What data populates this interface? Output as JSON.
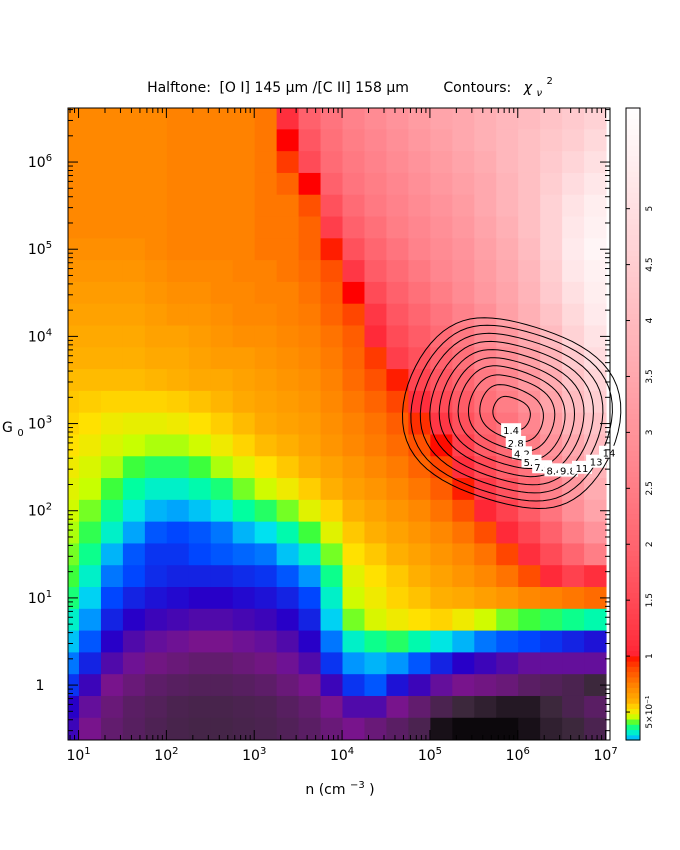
{
  "chart_data": {
    "type": "heatmap",
    "title": {
      "halftone_prefix": "Halftone:",
      "halftone_ratio": "[O I] 145 μm /[C II] 158 μm",
      "contours_prefix": "Contours:",
      "contours_symbol": "χ",
      "contours_sub": "ν",
      "contours_sup": "2"
    },
    "xlabel": {
      "text": "n (cm",
      "sup": "−3",
      "close": ")"
    },
    "ylabel": {
      "text": "G",
      "sub": "0"
    },
    "x_log_range": [
      0.88,
      7.05
    ],
    "y_log_range": [
      -0.63,
      6.62
    ],
    "x_ticks": [
      {
        "log": 1,
        "base": "10",
        "exp": "1"
      },
      {
        "log": 2,
        "base": "10",
        "exp": "2"
      },
      {
        "log": 3,
        "base": "10",
        "exp": "3"
      },
      {
        "log": 4,
        "base": "10",
        "exp": "4"
      },
      {
        "log": 5,
        "base": "10",
        "exp": "5"
      },
      {
        "log": 6,
        "base": "10",
        "exp": "6"
      },
      {
        "log": 7,
        "base": "10",
        "exp": "7"
      }
    ],
    "y_ticks": [
      {
        "log": 0,
        "base": "1",
        "exp": ""
      },
      {
        "log": 1,
        "base": "10",
        "exp": "1"
      },
      {
        "log": 2,
        "base": "10",
        "exp": "2"
      },
      {
        "log": 3,
        "base": "10",
        "exp": "3"
      },
      {
        "log": 4,
        "base": "10",
        "exp": "4"
      },
      {
        "log": 5,
        "base": "10",
        "exp": "5"
      },
      {
        "log": 6,
        "base": "10",
        "exp": "6"
      }
    ],
    "colorbar": {
      "range": [
        0.25,
        5.9
      ],
      "labels": [
        {
          "value": 5,
          "text": "5"
        },
        {
          "value": 4.5,
          "text": "4.5"
        },
        {
          "value": 4,
          "text": "4"
        },
        {
          "value": 3.5,
          "text": "3.5"
        },
        {
          "value": 3,
          "text": "3"
        },
        {
          "value": 2.5,
          "text": "2.5"
        },
        {
          "value": 2,
          "text": "2"
        },
        {
          "value": 1.5,
          "text": "1.5"
        },
        {
          "value": 1,
          "text": "1"
        },
        {
          "value": 0.5,
          "text": "5×10⁻¹"
        }
      ]
    },
    "grid_x_centers_log": [
      0.88,
      1.13,
      1.38,
      1.63,
      1.88,
      2.13,
      2.38,
      2.63,
      2.88,
      3.13,
      3.38,
      3.63,
      3.88,
      4.13,
      4.38,
      4.63,
      4.88,
      5.13,
      5.38,
      5.63,
      5.88,
      6.13,
      6.38,
      6.63,
      6.88
    ],
    "grid_y_centers_log": [
      6.5,
      6.25,
      6.0,
      5.75,
      5.5,
      5.25,
      5.0,
      4.75,
      4.5,
      4.25,
      4.0,
      3.75,
      3.5,
      3.25,
      3.0,
      2.75,
      2.5,
      2.25,
      2.0,
      1.75,
      1.5,
      1.25,
      1.0,
      0.75,
      0.5,
      0.25,
      0.0,
      -0.25,
      -0.5
    ],
    "ratio_grid": [
      [
        0.7,
        0.7,
        0.7,
        0.7,
        0.7,
        0.72,
        0.72,
        0.72,
        0.72,
        0.75,
        1.1,
        1.9,
        2.3,
        2.6,
        2.8,
        3.0,
        3.2,
        3.4,
        3.5,
        3.7,
        3.9,
        4.0,
        4.2,
        4.4,
        4.6
      ],
      [
        0.7,
        0.7,
        0.7,
        0.7,
        0.7,
        0.72,
        0.72,
        0.72,
        0.72,
        0.75,
        1.0,
        1.7,
        2.2,
        2.5,
        2.7,
        2.9,
        3.1,
        3.3,
        3.5,
        3.7,
        3.9,
        4.1,
        4.3,
        4.5,
        4.8
      ],
      [
        0.7,
        0.7,
        0.7,
        0.7,
        0.7,
        0.72,
        0.72,
        0.72,
        0.72,
        0.75,
        0.9,
        1.5,
        2.1,
        2.4,
        2.6,
        2.8,
        3.0,
        3.2,
        3.4,
        3.6,
        3.9,
        4.1,
        4.4,
        4.7,
        5.0
      ],
      [
        0.7,
        0.7,
        0.7,
        0.7,
        0.7,
        0.72,
        0.72,
        0.72,
        0.72,
        0.75,
        0.8,
        1.0,
        1.9,
        2.3,
        2.5,
        2.7,
        2.9,
        3.1,
        3.3,
        3.5,
        3.8,
        4.1,
        4.5,
        4.9,
        5.2
      ],
      [
        0.7,
        0.7,
        0.7,
        0.7,
        0.7,
        0.72,
        0.72,
        0.72,
        0.72,
        0.75,
        0.75,
        0.85,
        1.6,
        2.1,
        2.4,
        2.6,
        2.8,
        3.0,
        3.2,
        3.5,
        3.8,
        4.1,
        4.6,
        5.1,
        5.4
      ],
      [
        0.7,
        0.7,
        0.7,
        0.7,
        0.7,
        0.72,
        0.72,
        0.72,
        0.72,
        0.75,
        0.75,
        0.8,
        1.3,
        1.9,
        2.2,
        2.5,
        2.7,
        2.9,
        3.1,
        3.4,
        3.7,
        4.1,
        4.6,
        5.2,
        5.5
      ],
      [
        0.68,
        0.68,
        0.68,
        0.68,
        0.7,
        0.72,
        0.72,
        0.72,
        0.72,
        0.75,
        0.75,
        0.8,
        0.95,
        1.6,
        2.0,
        2.3,
        2.6,
        2.8,
        3.0,
        3.3,
        3.6,
        4.0,
        4.6,
        5.3,
        5.6
      ],
      [
        0.66,
        0.66,
        0.66,
        0.66,
        0.68,
        0.7,
        0.7,
        0.7,
        0.72,
        0.72,
        0.75,
        0.78,
        0.85,
        1.2,
        1.8,
        2.1,
        2.4,
        2.7,
        2.9,
        3.2,
        3.5,
        3.9,
        4.5,
        5.2,
        5.5
      ],
      [
        0.64,
        0.64,
        0.64,
        0.64,
        0.66,
        0.68,
        0.68,
        0.7,
        0.7,
        0.72,
        0.72,
        0.76,
        0.82,
        1.0,
        1.5,
        1.9,
        2.2,
        2.5,
        2.8,
        3.1,
        3.4,
        3.8,
        4.4,
        5.0,
        5.4
      ],
      [
        0.62,
        0.62,
        0.62,
        0.62,
        0.64,
        0.66,
        0.66,
        0.68,
        0.7,
        0.7,
        0.72,
        0.74,
        0.8,
        0.88,
        1.2,
        1.7,
        2.0,
        2.3,
        2.6,
        2.9,
        3.3,
        3.7,
        4.2,
        4.8,
        5.3
      ],
      [
        0.6,
        0.6,
        0.6,
        0.6,
        0.62,
        0.62,
        0.64,
        0.66,
        0.68,
        0.68,
        0.7,
        0.72,
        0.76,
        0.82,
        1.05,
        1.5,
        1.8,
        2.1,
        2.4,
        2.8,
        3.1,
        3.5,
        4.0,
        4.6,
        5.1
      ],
      [
        0.58,
        0.58,
        0.58,
        0.58,
        0.6,
        0.6,
        0.62,
        0.64,
        0.64,
        0.66,
        0.68,
        0.7,
        0.74,
        0.8,
        0.9,
        1.3,
        1.6,
        1.9,
        2.2,
        2.6,
        2.9,
        3.3,
        3.8,
        4.4,
        4.9
      ],
      [
        0.56,
        0.56,
        0.56,
        0.56,
        0.57,
        0.58,
        0.6,
        0.6,
        0.62,
        0.64,
        0.66,
        0.68,
        0.72,
        0.78,
        0.85,
        0.95,
        1.4,
        1.7,
        2.0,
        2.4,
        2.7,
        3.1,
        3.6,
        4.2,
        4.7
      ],
      [
        0.54,
        0.53,
        0.52,
        0.52,
        0.52,
        0.53,
        0.55,
        0.57,
        0.6,
        0.62,
        0.64,
        0.66,
        0.7,
        0.75,
        0.8,
        0.88,
        1.1,
        1.5,
        1.8,
        2.2,
        2.5,
        2.9,
        3.4,
        4.0,
        4.5
      ],
      [
        0.52,
        0.5,
        0.48,
        0.47,
        0.47,
        0.48,
        0.5,
        0.53,
        0.56,
        0.6,
        0.62,
        0.64,
        0.68,
        0.72,
        0.76,
        0.82,
        0.92,
        1.2,
        1.6,
        2.0,
        2.3,
        2.7,
        3.2,
        3.8,
        4.2
      ],
      [
        0.5,
        0.48,
        0.45,
        0.43,
        0.42,
        0.42,
        0.44,
        0.48,
        0.52,
        0.56,
        0.58,
        0.62,
        0.66,
        0.7,
        0.74,
        0.78,
        0.85,
        0.98,
        1.35,
        1.8,
        2.1,
        2.5,
        3.0,
        3.5,
        4.0
      ],
      [
        0.48,
        0.45,
        0.42,
        0.38,
        0.36,
        0.36,
        0.38,
        0.42,
        0.46,
        0.5,
        0.54,
        0.58,
        0.62,
        0.66,
        0.7,
        0.74,
        0.8,
        0.88,
        1.1,
        1.5,
        1.9,
        2.3,
        2.8,
        3.3,
        3.8
      ],
      [
        0.46,
        0.43,
        0.38,
        0.33,
        0.3,
        0.3,
        0.32,
        0.35,
        0.4,
        0.44,
        0.48,
        0.53,
        0.58,
        0.63,
        0.66,
        0.7,
        0.75,
        0.82,
        0.95,
        1.25,
        1.65,
        2.1,
        2.6,
        3.1,
        3.6
      ],
      [
        0.44,
        0.4,
        0.34,
        0.28,
        0.24,
        0.23,
        0.25,
        0.28,
        0.33,
        0.36,
        0.4,
        0.46,
        0.52,
        0.58,
        0.62,
        0.66,
        0.7,
        0.76,
        0.85,
        1.02,
        1.35,
        1.8,
        2.3,
        2.9,
        3.4
      ],
      [
        0.42,
        0.37,
        0.3,
        0.23,
        0.18,
        0.17,
        0.18,
        0.2,
        0.24,
        0.27,
        0.32,
        0.38,
        0.46,
        0.54,
        0.58,
        0.62,
        0.66,
        0.7,
        0.76,
        0.86,
        1.05,
        1.4,
        1.9,
        2.5,
        3.0
      ],
      [
        0.4,
        0.34,
        0.24,
        0.18,
        0.16,
        0.16,
        0.17,
        0.18,
        0.19,
        0.2,
        0.25,
        0.3,
        0.4,
        0.5,
        0.54,
        0.58,
        0.62,
        0.66,
        0.7,
        0.76,
        0.88,
        1.1,
        1.5,
        2.0,
        2.5
      ],
      [
        0.38,
        0.3,
        0.2,
        0.17,
        0.155,
        0.15,
        0.15,
        0.15,
        0.155,
        0.16,
        0.18,
        0.22,
        0.34,
        0.46,
        0.5,
        0.54,
        0.58,
        0.62,
        0.66,
        0.7,
        0.76,
        0.86,
        1.05,
        1.35,
        1.1
      ],
      [
        0.35,
        0.26,
        0.17,
        0.15,
        0.14,
        0.135,
        0.13,
        0.13,
        0.135,
        0.14,
        0.15,
        0.17,
        0.3,
        0.44,
        0.48,
        0.52,
        0.55,
        0.58,
        0.6,
        0.63,
        0.66,
        0.7,
        0.72,
        0.75,
        0.78
      ],
      [
        0.3,
        0.22,
        0.15,
        0.13,
        0.12,
        0.115,
        0.11,
        0.11,
        0.115,
        0.12,
        0.13,
        0.15,
        0.26,
        0.4,
        0.45,
        0.48,
        0.5,
        0.52,
        0.48,
        0.44,
        0.4,
        0.38,
        0.36,
        0.34,
        0.32
      ],
      [
        0.25,
        0.18,
        0.13,
        0.11,
        0.1,
        0.095,
        0.09,
        0.09,
        0.095,
        0.1,
        0.11,
        0.13,
        0.2,
        0.3,
        0.34,
        0.36,
        0.32,
        0.28,
        0.24,
        0.2,
        0.18,
        0.17,
        0.16,
        0.15,
        0.14
      ],
      [
        0.2,
        0.15,
        0.11,
        0.095,
        0.085,
        0.08,
        0.075,
        0.075,
        0.08,
        0.085,
        0.095,
        0.11,
        0.16,
        0.22,
        0.24,
        0.22,
        0.18,
        0.15,
        0.13,
        0.12,
        0.11,
        0.1,
        0.1,
        0.1,
        0.1
      ],
      [
        0.16,
        0.12,
        0.09,
        0.08,
        0.072,
        0.068,
        0.065,
        0.065,
        0.068,
        0.072,
        0.08,
        0.09,
        0.12,
        0.16,
        0.18,
        0.14,
        0.12,
        0.1,
        0.09,
        0.085,
        0.08,
        0.07,
        0.065,
        0.06,
        0.05
      ],
      [
        0.13,
        0.1,
        0.08,
        0.07,
        0.065,
        0.06,
        0.058,
        0.058,
        0.06,
        0.062,
        0.068,
        0.075,
        0.09,
        0.11,
        0.11,
        0.09,
        0.075,
        0.06,
        0.05,
        0.04,
        0.03,
        0.03,
        0.05,
        0.06,
        0.07
      ],
      [
        0.12,
        0.09,
        0.075,
        0.068,
        0.062,
        0.058,
        0.056,
        0.056,
        0.058,
        0.06,
        0.064,
        0.07,
        0.08,
        0.09,
        0.08,
        0.07,
        0.06,
        0.02,
        0.01,
        0.01,
        0.01,
        0.02,
        0.04,
        0.05,
        0.06
      ]
    ],
    "contours": {
      "center": [
        5.93,
        3.12
      ],
      "rings": [
        {
          "rx": 0.22,
          "ry": 0.18,
          "label": "1.4"
        },
        {
          "rx": 0.38,
          "ry": 0.3,
          "label": "2.8"
        },
        {
          "rx": 0.5,
          "ry": 0.42,
          "label": "4.2"
        },
        {
          "rx": 0.62,
          "ry": 0.52,
          "label": "5.6"
        },
        {
          "rx": 0.72,
          "ry": 0.62,
          "label": "7.0"
        },
        {
          "rx": 0.82,
          "ry": 0.72,
          "label": "8.4"
        },
        {
          "rx": 0.92,
          "ry": 0.82,
          "label": "9.8"
        },
        {
          "rx": 1.02,
          "ry": 0.92,
          "label": "11"
        },
        {
          "rx": 1.12,
          "ry": 1.02,
          "label": "13"
        },
        {
          "rx": 1.22,
          "ry": 1.1,
          "label": "14"
        }
      ]
    }
  }
}
